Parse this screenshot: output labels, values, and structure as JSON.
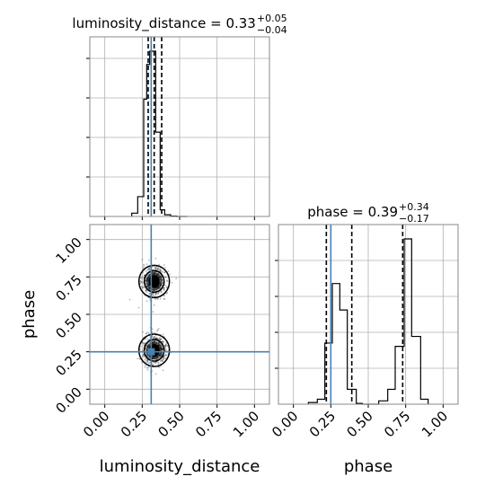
{
  "chart_data": {
    "type": "corner",
    "parameters": [
      "luminosity_distance",
      "phase"
    ],
    "axis_ticks": [
      "0.00",
      "0.25",
      "0.50",
      "0.75",
      "1.00"
    ],
    "titles": [
      {
        "name": "luminosity_distance",
        "median": "0.33",
        "plus": "+0.05",
        "minus": "−0.04"
      },
      {
        "name": "phase",
        "median": "0.39",
        "plus": "+0.34",
        "minus": "−0.17"
      }
    ],
    "xlim": [
      -0.1,
      1.1
    ],
    "ylim": [
      -0.1,
      1.1
    ],
    "truth": {
      "luminosity_distance": 0.31,
      "phase": 0.25
    },
    "truth_color": "#4682b4",
    "hist_luminosity_distance": {
      "bin_edges": [
        0.18,
        0.22,
        0.26,
        0.28,
        0.3,
        0.32,
        0.34,
        0.37,
        0.4,
        0.44,
        0.48,
        0.55
      ],
      "values": [
        2,
        12,
        71,
        92,
        100,
        100,
        51,
        4,
        1,
        0.2,
        0
      ],
      "quantiles": [
        0.29,
        0.33,
        0.38
      ]
    },
    "hist_phase": {
      "bin_edges": [
        0.1,
        0.16,
        0.21,
        0.26,
        0.31,
        0.36,
        0.42,
        0.46,
        0.52,
        0.57,
        0.63,
        0.68,
        0.74,
        0.79,
        0.85,
        0.9
      ],
      "values": [
        1,
        3,
        37,
        73,
        57,
        9,
        0.5,
        0,
        0,
        2,
        9,
        35,
        100,
        41,
        3
      ],
      "quantiles": [
        0.22,
        0.39,
        0.73
      ]
    },
    "scatter_clusters": [
      {
        "ld": 0.33,
        "phase": 0.72
      },
      {
        "ld": 0.33,
        "phase": 0.26
      }
    ]
  }
}
